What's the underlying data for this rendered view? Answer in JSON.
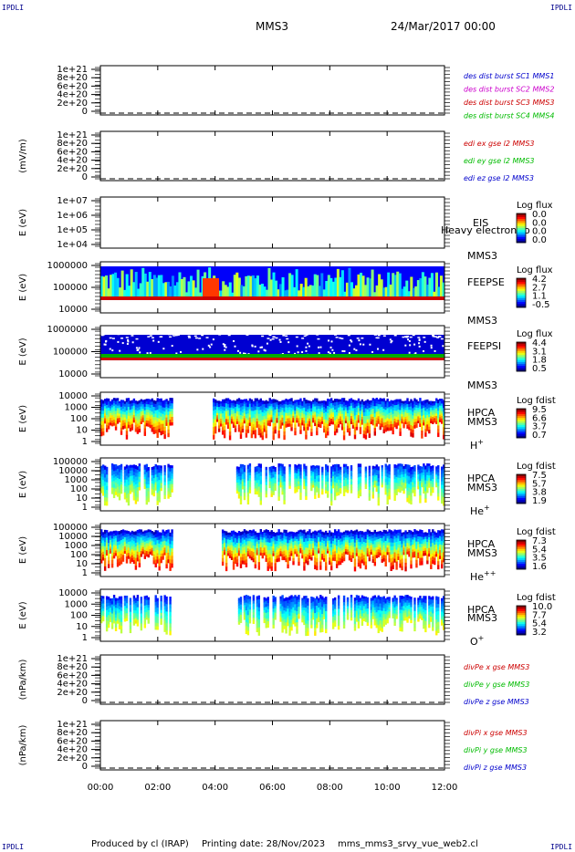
{
  "corner_label": "IPDLI",
  "header": {
    "spacecraft": "MMS3",
    "date": "24/Mar/2017 00:00"
  },
  "footer": {
    "produced_by": "Produced by cl (IRAP)",
    "printing_date": "Printing date: 28/Nov/2023",
    "script_name": "mms_mms3_srvy_vue_web2.cl"
  },
  "colors": {
    "red": "#cc0000",
    "green": "#00bb00",
    "blue": "#0000cc",
    "magenta": "#cc00cc"
  },
  "chart_data": {
    "type": "heatmap",
    "x_ticks": [
      "00:00",
      "02:00",
      "04:00",
      "06:00",
      "08:00",
      "10:00",
      "12:00"
    ],
    "xlim": [
      "00:00",
      "12:00"
    ],
    "panels": [
      {
        "id": "des",
        "type": "line",
        "ylabel": "",
        "ticks": [
          "1e+21",
          "8e+20",
          "6e+20",
          "4e+20",
          "2e+20",
          "0"
        ],
        "ylim": [
          0,
          1e+21
        ],
        "legend": [
          {
            "text": "des dist burst SC1 MMS1",
            "color": "#0000cc"
          },
          {
            "text": "des dist burst SC2 MMS2",
            "color": "#cc00cc"
          },
          {
            "text": "des dist burst SC3 MMS3",
            "color": "#cc0000"
          },
          {
            "text": "des dist burst SC4 MMS4",
            "color": "#00bb00"
          }
        ]
      },
      {
        "id": "edi",
        "type": "line",
        "ylabel": "(mV/m)",
        "ticks": [
          "1e+21",
          "8e+20",
          "6e+20",
          "4e+20",
          "2e+20",
          "0"
        ],
        "ylim": [
          0,
          1e+21
        ],
        "legend": [
          {
            "text": "edi ex gse l2 MMS3",
            "color": "#cc0000"
          },
          {
            "text": "edi ey gse l2 MMS3",
            "color": "#00bb00"
          },
          {
            "text": "edi ez gse l2 MMS3",
            "color": "#0000cc"
          }
        ]
      },
      {
        "id": "eis",
        "type": "heatmap",
        "ylabel": "E (eV)",
        "ticks": [
          "1e+07",
          "1e+06",
          "1e+05",
          "1e+04"
        ],
        "ylim": [
          10000.0,
          10000000.0
        ],
        "instrument": "EIS",
        "instrument2": "MMS3",
        "overlay_text": "Heavy electron to",
        "cbar_title": "Log flux",
        "cbar_ticks": [
          "0.0",
          "0.0",
          "0.0",
          "0.0"
        ]
      },
      {
        "id": "feepse",
        "type": "heatmap",
        "ylabel": "E (eV)",
        "ticks": [
          "1000000",
          "100000",
          "10000"
        ],
        "ylim": [
          10000.0,
          1000000.0
        ],
        "instrument": "FEEPSE",
        "instrument2": "MMS3",
        "cbar_title": "Log flux",
        "cbar_ticks": [
          "4.2",
          "2.7",
          "1.1",
          "-0.5"
        ]
      },
      {
        "id": "feepsi",
        "type": "heatmap",
        "ylabel": "E (eV)",
        "ticks": [
          "1000000",
          "100000",
          "10000"
        ],
        "ylim": [
          10000.0,
          1000000.0
        ],
        "instrument": "FEEPSI",
        "instrument2": "MMS3",
        "cbar_title": "Log flux",
        "cbar_ticks": [
          "4.4",
          "3.1",
          "1.8",
          "0.5"
        ]
      },
      {
        "id": "hpca_h",
        "type": "heatmap",
        "ylabel": "E (eV)",
        "ticks": [
          "10000",
          "1000",
          "100",
          "10",
          "1"
        ],
        "ylim": [
          1,
          10000.0
        ],
        "instrument": "HPCA",
        "instrument2": "MMS3",
        "species": "H",
        "charge": "+",
        "cbar_title": "Log fdist",
        "cbar_ticks": [
          "9.5",
          "6.6",
          "3.7",
          "0.7"
        ]
      },
      {
        "id": "hpca_he",
        "type": "heatmap",
        "ylabel": "E (eV)",
        "ticks": [
          "100000",
          "10000",
          "1000",
          "100",
          "10",
          "1"
        ],
        "ylim": [
          1,
          100000.0
        ],
        "instrument": "HPCA",
        "instrument2": "MMS3",
        "species": "He",
        "charge": "+",
        "cbar_title": "Log fdist",
        "cbar_ticks": [
          "7.5",
          "5.7",
          "3.8",
          "1.9"
        ]
      },
      {
        "id": "hpca_he2",
        "type": "heatmap",
        "ylabel": "E (eV)",
        "ticks": [
          "100000",
          "10000",
          "1000",
          "100",
          "10",
          "1"
        ],
        "ylim": [
          1,
          100000.0
        ],
        "instrument": "HPCA",
        "instrument2": "MMS3",
        "species": "He",
        "charge": "++",
        "cbar_title": "Log fdist",
        "cbar_ticks": [
          "7.3",
          "5.4",
          "3.5",
          "1.6"
        ]
      },
      {
        "id": "hpca_o",
        "type": "heatmap",
        "ylabel": "E (eV)",
        "ticks": [
          "10000",
          "1000",
          "100",
          "10",
          "1"
        ],
        "ylim": [
          1,
          10000.0
        ],
        "instrument": "HPCA",
        "instrument2": "MMS3",
        "species": "O",
        "charge": "+",
        "cbar_title": "Log fdist",
        "cbar_ticks": [
          "10.0",
          "7.7",
          "5.4",
          "3.2"
        ]
      },
      {
        "id": "divpe",
        "type": "line",
        "ylabel": "(nPa/km)",
        "ticks": [
          "1e+21",
          "8e+20",
          "6e+20",
          "4e+20",
          "2e+20",
          "0"
        ],
        "ylim": [
          0,
          1e+21
        ],
        "legend": [
          {
            "text": "divPe x gse MMS3",
            "color": "#cc0000"
          },
          {
            "text": "divPe y gse MMS3",
            "color": "#00bb00"
          },
          {
            "text": "divPe z gse MMS3",
            "color": "#0000cc"
          }
        ]
      },
      {
        "id": "divpi",
        "type": "line",
        "ylabel": "(nPa/km)",
        "ticks": [
          "1e+21",
          "8e+20",
          "6e+20",
          "4e+20",
          "2e+20",
          "0"
        ],
        "ylim": [
          0,
          1e+21
        ],
        "legend": [
          {
            "text": "divPi x gse MMS3",
            "color": "#cc0000"
          },
          {
            "text": "divPi y gse MMS3",
            "color": "#00bb00"
          },
          {
            "text": "divPi z gse MMS3",
            "color": "#0000cc"
          }
        ]
      }
    ]
  }
}
